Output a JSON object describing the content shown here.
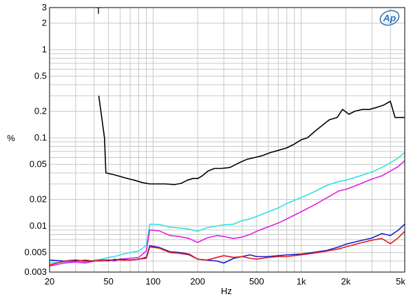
{
  "chart_data": {
    "type": "line",
    "xlabel": "Hz",
    "ylabel": "%",
    "xscale": "log",
    "yscale": "log",
    "xlim": [
      20,
      5000
    ],
    "ylim": [
      0.003,
      3
    ],
    "grid": true,
    "marker_label": "T",
    "x_ticks": [
      {
        "value": 20,
        "label": "20"
      },
      {
        "value": 50,
        "label": "50"
      },
      {
        "value": 100,
        "label": "100"
      },
      {
        "value": 200,
        "label": "200"
      },
      {
        "value": 500,
        "label": "500"
      },
      {
        "value": 1000,
        "label": "1k"
      },
      {
        "value": 2000,
        "label": "2k"
      },
      {
        "value": 5000,
        "label": "5k"
      }
    ],
    "y_ticks": [
      {
        "value": 3,
        "label": "3"
      },
      {
        "value": 2,
        "label": "2"
      },
      {
        "value": 1,
        "label": "1"
      },
      {
        "value": 0.5,
        "label": "0.5"
      },
      {
        "value": 0.2,
        "label": "0.2"
      },
      {
        "value": 0.1,
        "label": "0.1"
      },
      {
        "value": 0.05,
        "label": "0.05"
      },
      {
        "value": 0.02,
        "label": "0.02"
      },
      {
        "value": 0.01,
        "label": "0.01"
      },
      {
        "value": 0.005,
        "label": "0.005"
      },
      {
        "value": 0.003,
        "label": "0.003"
      }
    ],
    "series": [
      {
        "color": "#000000",
        "x": [
          43,
          47,
          48,
          55,
          65,
          75,
          85,
          95,
          105,
          120,
          140,
          155,
          170,
          185,
          200,
          215,
          235,
          260,
          290,
          330,
          380,
          430,
          490,
          550,
          620,
          700,
          800,
          900,
          1000,
          1100,
          1250,
          1400,
          1550,
          1750,
          1900,
          2100,
          2300,
          2600,
          2900,
          3200,
          3600,
          4000,
          4300,
          4600,
          5000
        ],
        "y": [
          0.3,
          0.1,
          0.04,
          0.038,
          0.035,
          0.033,
          0.031,
          0.03,
          0.03,
          0.03,
          0.0295,
          0.0305,
          0.033,
          0.0345,
          0.0345,
          0.037,
          0.042,
          0.045,
          0.045,
          0.046,
          0.052,
          0.057,
          0.06,
          0.063,
          0.068,
          0.072,
          0.077,
          0.085,
          0.095,
          0.1,
          0.12,
          0.14,
          0.16,
          0.17,
          0.21,
          0.185,
          0.2,
          0.21,
          0.21,
          0.22,
          0.235,
          0.26,
          0.17,
          0.17,
          0.17
        ]
      },
      {
        "color": "#33e0e0",
        "x": [
          20,
          25,
          30,
          35,
          40,
          45,
          50,
          55,
          60,
          70,
          80,
          90,
          95,
          110,
          130,
          150,
          175,
          200,
          230,
          270,
          300,
          350,
          400,
          450,
          500,
          600,
          700,
          800,
          1000,
          1200,
          1500,
          1800,
          2000,
          2500,
          3000,
          3500,
          4000,
          4500,
          5000
        ],
        "y": [
          0.0038,
          0.0039,
          0.004,
          0.0039,
          0.0041,
          0.0042,
          0.0044,
          0.0045,
          0.0047,
          0.005,
          0.0052,
          0.006,
          0.0105,
          0.0104,
          0.0097,
          0.0095,
          0.0092,
          0.0087,
          0.0095,
          0.01,
          0.0103,
          0.0105,
          0.0115,
          0.012,
          0.0128,
          0.0145,
          0.016,
          0.018,
          0.021,
          0.024,
          0.029,
          0.032,
          0.033,
          0.037,
          0.041,
          0.046,
          0.052,
          0.059,
          0.068
        ]
      },
      {
        "color": "#e020e0",
        "x": [
          20,
          25,
          30,
          35,
          40,
          45,
          50,
          55,
          60,
          70,
          80,
          90,
          95,
          110,
          130,
          150,
          175,
          200,
          230,
          270,
          300,
          350,
          400,
          450,
          500,
          600,
          700,
          800,
          1000,
          1200,
          1500,
          1800,
          2000,
          2500,
          3000,
          3500,
          4000,
          4500,
          5000
        ],
        "y": [
          0.0035,
          0.0038,
          0.0039,
          0.0038,
          0.004,
          0.004,
          0.0041,
          0.004,
          0.0042,
          0.0043,
          0.0044,
          0.0052,
          0.009,
          0.0088,
          0.0078,
          0.0076,
          0.0072,
          0.0065,
          0.0073,
          0.0078,
          0.0076,
          0.0072,
          0.0075,
          0.008,
          0.0087,
          0.0098,
          0.0108,
          0.012,
          0.0145,
          0.017,
          0.021,
          0.025,
          0.026,
          0.03,
          0.034,
          0.037,
          0.042,
          0.047,
          0.055
        ]
      },
      {
        "color": "#1a1acc",
        "x": [
          20,
          25,
          30,
          35,
          40,
          45,
          50,
          55,
          60,
          70,
          80,
          90,
          95,
          110,
          130,
          150,
          175,
          200,
          230,
          270,
          300,
          350,
          400,
          450,
          500,
          600,
          700,
          800,
          1000,
          1200,
          1500,
          1800,
          2000,
          2500,
          3000,
          3500,
          4000,
          4500,
          5000
        ],
        "y": [
          0.0041,
          0.004,
          0.0041,
          0.004,
          0.004,
          0.0041,
          0.0041,
          0.0041,
          0.0042,
          0.0041,
          0.0042,
          0.0044,
          0.006,
          0.0057,
          0.0051,
          0.005,
          0.0048,
          0.0042,
          0.0041,
          0.004,
          0.0038,
          0.0043,
          0.0045,
          0.0047,
          0.0045,
          0.0045,
          0.0046,
          0.0047,
          0.0048,
          0.005,
          0.0053,
          0.0058,
          0.0062,
          0.0068,
          0.0073,
          0.0082,
          0.0078,
          0.0089,
          0.0105
        ]
      },
      {
        "color": "#e01a1a",
        "x": [
          20,
          25,
          30,
          35,
          40,
          45,
          50,
          55,
          60,
          70,
          80,
          90,
          95,
          110,
          130,
          150,
          175,
          200,
          230,
          270,
          300,
          350,
          400,
          450,
          500,
          600,
          700,
          800,
          1000,
          1200,
          1500,
          1800,
          2000,
          2500,
          3000,
          3500,
          4000,
          4500,
          5000
        ],
        "y": [
          0.0036,
          0.004,
          0.004,
          0.0041,
          0.004,
          0.0041,
          0.004,
          0.0042,
          0.0041,
          0.0041,
          0.0042,
          0.0043,
          0.0058,
          0.0056,
          0.005,
          0.0049,
          0.0047,
          0.0042,
          0.0041,
          0.0044,
          0.0046,
          0.0044,
          0.0045,
          0.0043,
          0.0042,
          0.0044,
          0.0045,
          0.0045,
          0.0047,
          0.0049,
          0.0052,
          0.0055,
          0.0058,
          0.0064,
          0.0069,
          0.0072,
          0.0063,
          0.0073,
          0.0087
        ]
      }
    ]
  },
  "logo": {
    "text": "Ap"
  }
}
